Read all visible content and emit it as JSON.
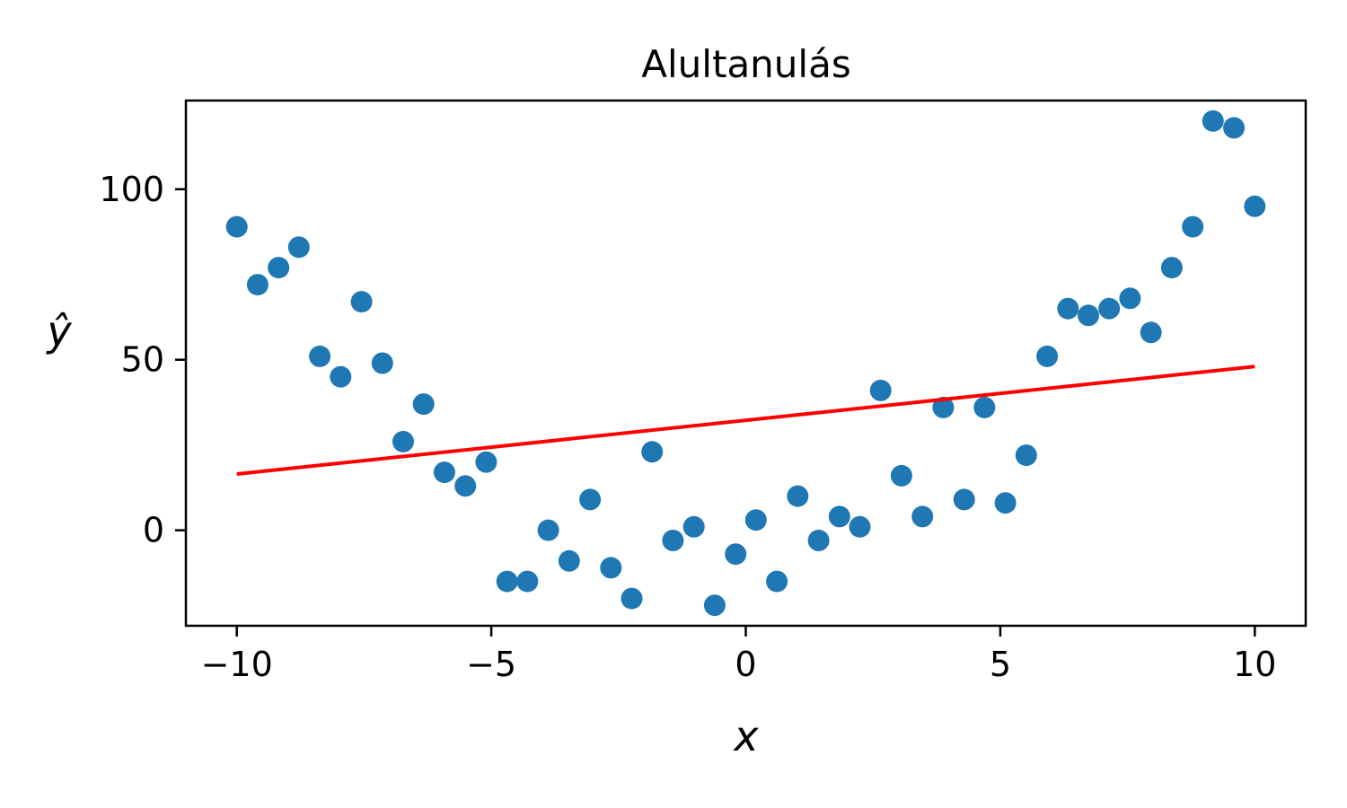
{
  "chart_data": {
    "type": "scatter",
    "title": "Alultanulás",
    "xlabel": "x",
    "ylabel": "ŷ",
    "xlim": [
      -11,
      11
    ],
    "ylim": [
      -28,
      126
    ],
    "xticks": [
      -10,
      -5,
      0,
      5,
      10
    ],
    "xtick_labels": [
      "−10",
      "−5",
      "0",
      "5",
      "10"
    ],
    "yticks": [
      0,
      50,
      100
    ],
    "ytick_labels": [
      "0",
      "50",
      "100"
    ],
    "grid": false,
    "colors": {
      "points": "#1f77b4",
      "line": "#ff0000"
    },
    "points": {
      "x": [
        -10,
        -9.59,
        -9.18,
        -8.78,
        -8.37,
        -7.96,
        -7.55,
        -7.14,
        -6.73,
        -6.33,
        -5.92,
        -5.51,
        -5.1,
        -4.69,
        -4.29,
        -3.88,
        -3.47,
        -3.06,
        -2.65,
        -2.24,
        -1.84,
        -1.43,
        -1.02,
        -0.61,
        -0.2,
        0.2,
        0.61,
        1.02,
        1.43,
        1.84,
        2.24,
        2.65,
        3.06,
        3.47,
        3.88,
        4.29,
        4.69,
        5.1,
        5.51,
        5.92,
        6.33,
        6.73,
        7.14,
        7.55,
        7.96,
        8.37,
        8.78,
        9.18,
        9.59,
        10
      ],
      "y": [
        89,
        72,
        77,
        83,
        51,
        45,
        67,
        49,
        26,
        37,
        17,
        13,
        20,
        -15,
        -15,
        0,
        -9,
        9,
        -11,
        -20,
        23,
        -3,
        1,
        -22,
        -7,
        3,
        -15,
        10,
        -3,
        4,
        1,
        41,
        16,
        4,
        36,
        9,
        36,
        8,
        22,
        51,
        65,
        63,
        65,
        68,
        58,
        77,
        89,
        120,
        118,
        95
      ]
    },
    "fit_line": {
      "x": [
        -10,
        10
      ],
      "y": [
        16.5,
        48
      ]
    }
  }
}
